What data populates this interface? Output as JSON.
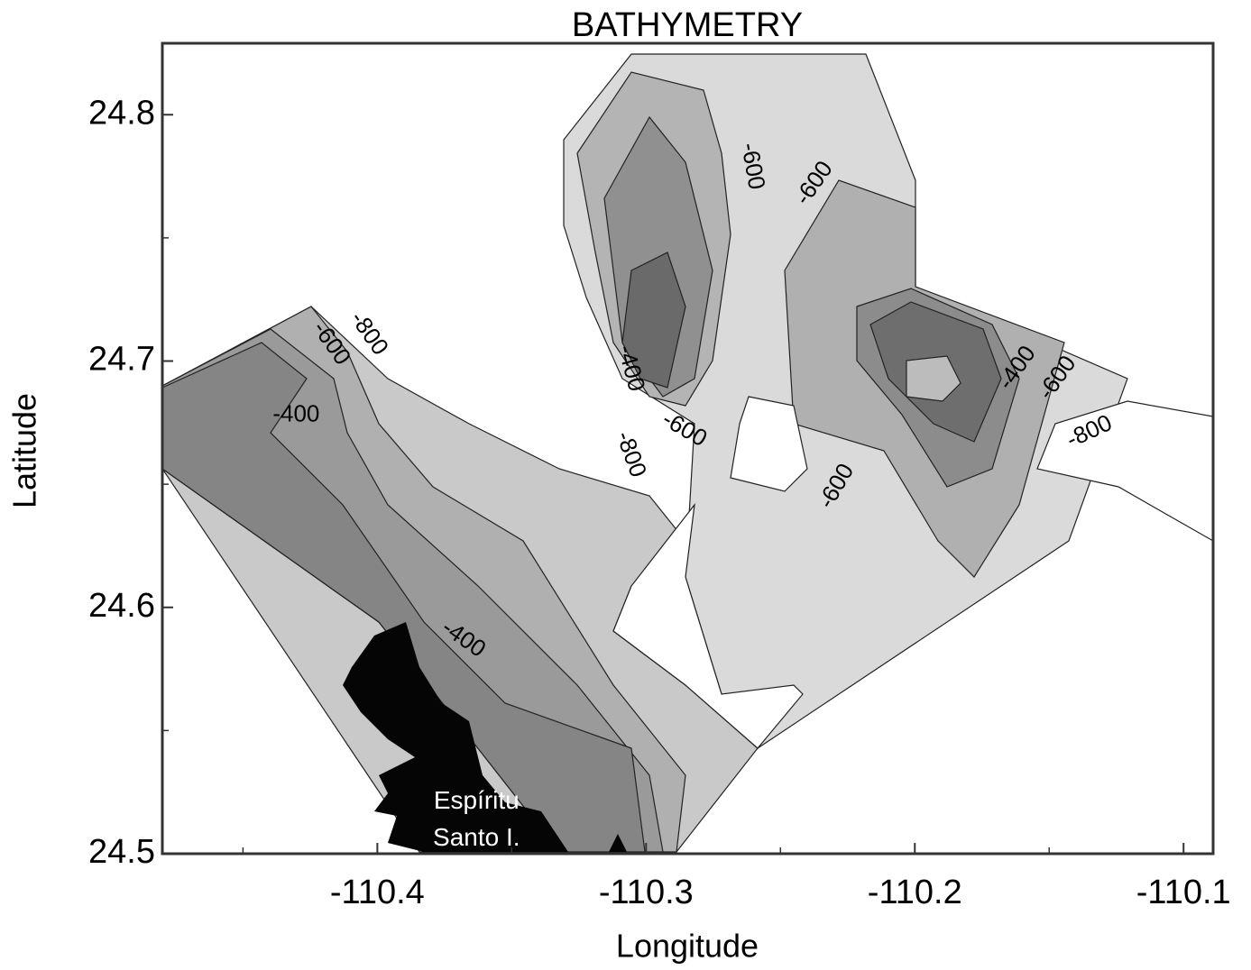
{
  "chart_data": {
    "type": "contour",
    "title": "BATHYMETRY",
    "x_label": "Longitude",
    "y_label": "Latitude",
    "xlim": [
      -110.48,
      -110.089
    ],
    "ylim": [
      24.5,
      24.829
    ],
    "xticks": [
      -110.4,
      -110.3,
      -110.2,
      -110.1
    ],
    "yticks": [
      24.5,
      24.6,
      24.7,
      24.8
    ],
    "xminorticks": [
      -110.45,
      -110.35,
      -110.25,
      -110.15
    ],
    "yminorticks": [
      24.55,
      24.65,
      24.75
    ],
    "contour_labels": [
      {
        "level": -600,
        "x": -110.2607,
        "y": 24.779
      },
      {
        "level": -600,
        "x": -110.2372,
        "y": 24.772
      },
      {
        "level": -600,
        "x": -110.4174,
        "y": 24.707
      },
      {
        "level": -800,
        "x": -110.4034,
        "y": 24.711
      },
      {
        "level": -400,
        "x": -110.4302,
        "y": 24.678
      },
      {
        "level": -400,
        "x": -110.306,
        "y": 24.697
      },
      {
        "level": -600,
        "x": -110.2859,
        "y": 24.672
      },
      {
        "level": -800,
        "x": -110.306,
        "y": 24.662
      },
      {
        "level": -600,
        "x": -110.2289,
        "y": 24.649
      },
      {
        "level": -400,
        "x": -110.1617,
        "y": 24.697
      },
      {
        "level": -600,
        "x": -110.1467,
        "y": 24.693
      },
      {
        "level": -800,
        "x": -110.1349,
        "y": 24.671
      },
      {
        "level": -400,
        "x": -110.3681,
        "y": 24.587
      }
    ],
    "annotations": [
      {
        "text": "Espíritu",
        "x": -110.3631,
        "y": 24.521
      },
      {
        "text": "Santo I.",
        "x": -110.3631,
        "y": 24.506
      }
    ]
  }
}
